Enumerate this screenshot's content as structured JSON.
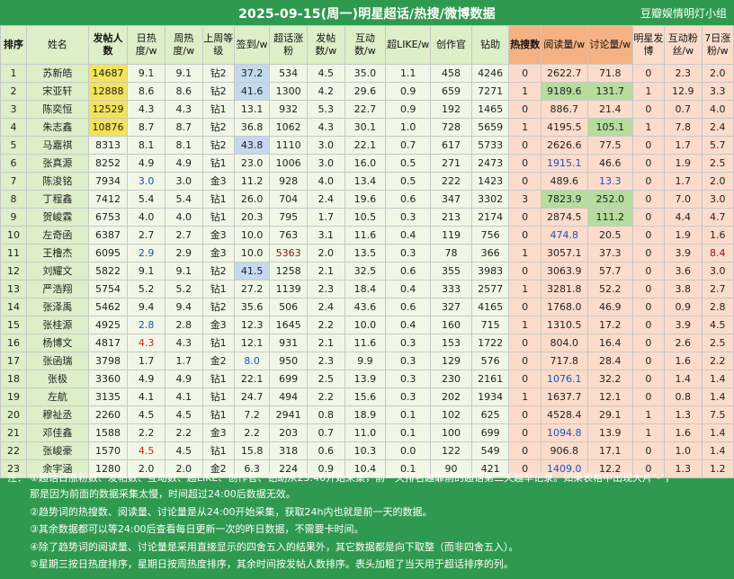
{
  "title": "2025-09-15(周一)明星超话/热搜/微博数据",
  "brand": "豆瓣娱情明灯小组",
  "headers": [
    "排序",
    "姓名",
    "发帖人数",
    "日热度/w",
    "周热度/w",
    "上周等级",
    "签到/w",
    "超话涨粉",
    "发帖数/w",
    "互动数/w",
    "超LIKE/w",
    "创作官",
    "钻助",
    "热搜数",
    "阅读量/w",
    "讨论量/w",
    "明星发博",
    "互动粉丝/w",
    "7日涨粉/w"
  ],
  "rows": [
    [
      "1",
      "苏新皓",
      "14687",
      "9.1",
      "9.1",
      "钻2",
      "37.2",
      "534",
      "4.5",
      "35.0",
      "1.1",
      "458",
      "4246",
      "0",
      "2622.7",
      "71.8",
      "0",
      "2.3",
      "2.0"
    ],
    [
      "2",
      "宋亚轩",
      "12888",
      "8.6",
      "8.6",
      "钻2",
      "41.6",
      "1300",
      "4.2",
      "29.6",
      "0.9",
      "659",
      "7271",
      "1",
      "9189.6",
      "131.7",
      "1",
      "12.9",
      "3.3"
    ],
    [
      "3",
      "陈奕恒",
      "12529",
      "4.3",
      "4.3",
      "钻1",
      "13.1",
      "932",
      "5.3",
      "22.7",
      "0.9",
      "192",
      "1465",
      "0",
      "886.7",
      "21.4",
      "0",
      "0.7",
      "4.0"
    ],
    [
      "4",
      "朱志鑫",
      "10876",
      "8.7",
      "8.7",
      "钻2",
      "36.8",
      "1062",
      "4.3",
      "30.1",
      "1.0",
      "728",
      "5659",
      "1",
      "4195.5",
      "105.1",
      "1",
      "7.8",
      "2.4"
    ],
    [
      "5",
      "马嘉祺",
      "8313",
      "8.1",
      "8.1",
      "钻2",
      "43.8",
      "1110",
      "3.0",
      "22.1",
      "0.7",
      "617",
      "5733",
      "0",
      "2626.6",
      "77.5",
      "0",
      "1.7",
      "5.7"
    ],
    [
      "6",
      "张真源",
      "8252",
      "4.9",
      "4.9",
      "钻1",
      "23.0",
      "1006",
      "3.0",
      "16.0",
      "0.5",
      "271",
      "2473",
      "0",
      "1915.1",
      "46.6",
      "0",
      "1.9",
      "2.5"
    ],
    [
      "7",
      "陈浚铭",
      "7934",
      "3.0",
      "3.0",
      "金3",
      "11.2",
      "928",
      "4.0",
      "13.4",
      "0.5",
      "222",
      "1423",
      "0",
      "489.6",
      "13.3",
      "0",
      "1.7",
      "2.0"
    ],
    [
      "8",
      "丁程鑫",
      "7412",
      "5.4",
      "5.4",
      "钻1",
      "26.0",
      "704",
      "2.4",
      "19.6",
      "0.6",
      "347",
      "3302",
      "3",
      "7823.9",
      "252.0",
      "0",
      "7.0",
      "3.0"
    ],
    [
      "9",
      "贺峻霖",
      "6753",
      "4.0",
      "4.0",
      "钻1",
      "20.3",
      "795",
      "1.7",
      "10.5",
      "0.3",
      "213",
      "2174",
      "0",
      "2874.5",
      "111.2",
      "0",
      "4.4",
      "4.7"
    ],
    [
      "10",
      "左奇函",
      "6387",
      "2.7",
      "2.7",
      "金3",
      "10.0",
      "763",
      "3.1",
      "11.6",
      "0.4",
      "119",
      "756",
      "0",
      "474.8",
      "20.5",
      "0",
      "1.9",
      "1.6"
    ],
    [
      "11",
      "王橹杰",
      "6095",
      "2.9",
      "2.9",
      "金3",
      "10.0",
      "5363",
      "2.0",
      "13.5",
      "0.3",
      "78",
      "366",
      "1",
      "3057.1",
      "37.3",
      "0",
      "3.9",
      "8.4"
    ],
    [
      "12",
      "刘耀文",
      "5822",
      "9.1",
      "9.1",
      "钻2",
      "41.5",
      "1258",
      "2.1",
      "32.5",
      "0.6",
      "355",
      "3983",
      "0",
      "3063.9",
      "57.7",
      "0",
      "3.6",
      "3.0"
    ],
    [
      "13",
      "严浩翔",
      "5754",
      "5.2",
      "5.2",
      "钻1",
      "27.2",
      "1139",
      "2.3",
      "18.4",
      "0.4",
      "333",
      "2577",
      "1",
      "3281.8",
      "52.2",
      "0",
      "3.8",
      "2.7"
    ],
    [
      "14",
      "张泽禹",
      "5462",
      "9.4",
      "9.4",
      "钻2",
      "35.6",
      "506",
      "2.4",
      "43.6",
      "0.6",
      "327",
      "4165",
      "0",
      "1768.0",
      "46.9",
      "0",
      "0.9",
      "2.8"
    ],
    [
      "15",
      "张桂源",
      "4925",
      "2.8",
      "2.8",
      "金3",
      "12.3",
      "1645",
      "2.2",
      "10.0",
      "0.4",
      "160",
      "715",
      "1",
      "1310.5",
      "17.2",
      "0",
      "3.9",
      "4.5"
    ],
    [
      "16",
      "杨博文",
      "4817",
      "4.3",
      "4.3",
      "钻1",
      "12.1",
      "931",
      "2.1",
      "11.6",
      "0.3",
      "153",
      "1722",
      "0",
      "804.0",
      "16.4",
      "0",
      "2.6",
      "2.5"
    ],
    [
      "17",
      "张函瑞",
      "3798",
      "1.7",
      "1.7",
      "金2",
      "8.0",
      "950",
      "2.3",
      "9.9",
      "0.3",
      "129",
      "576",
      "0",
      "717.8",
      "28.4",
      "0",
      "1.6",
      "2.2"
    ],
    [
      "18",
      "张极",
      "3360",
      "4.9",
      "4.9",
      "钻1",
      "22.1",
      "699",
      "2.5",
      "13.9",
      "0.3",
      "230",
      "2161",
      "0",
      "1076.1",
      "32.2",
      "0",
      "1.4",
      "1.4"
    ],
    [
      "19",
      "左航",
      "3135",
      "4.1",
      "4.1",
      "钻1",
      "24.7",
      "494",
      "2.2",
      "15.6",
      "0.3",
      "202",
      "1934",
      "1",
      "1637.7",
      "12.1",
      "0",
      "0.8",
      "1.4"
    ],
    [
      "20",
      "穆祉丞",
      "2260",
      "4.5",
      "4.5",
      "钻1",
      "7.2",
      "2941",
      "0.8",
      "18.9",
      "0.1",
      "102",
      "625",
      "0",
      "4528.4",
      "29.1",
      "1",
      "1.3",
      "7.5"
    ],
    [
      "21",
      "邓佳鑫",
      "1588",
      "2.2",
      "2.2",
      "金3",
      "2.2",
      "203",
      "0.7",
      "11.0",
      "0.1",
      "100",
      "699",
      "0",
      "1094.8",
      "13.9",
      "1",
      "1.6",
      "1.4"
    ],
    [
      "22",
      "张峻豪",
      "1570",
      "4.5",
      "4.5",
      "钻1",
      "15.8",
      "318",
      "0.6",
      "10.3",
      "0.0",
      "122",
      "549",
      "0",
      "906.8",
      "17.1",
      "0",
      "1.0",
      "1.4"
    ],
    [
      "23",
      "余宇涵",
      "1280",
      "2.0",
      "2.0",
      "金2",
      "6.3",
      "224",
      "0.9",
      "10.4",
      "0.1",
      "90",
      "421",
      "0",
      "1409.0",
      "12.2",
      "0",
      "1.3",
      "1.2"
    ]
  ],
  "notes_label": "注：",
  "notes": [
    "①超话日涨粉数、发帖数、互动数、超LIKE、创作官、钻助从23:40开始采集，前一天排名越靠前的超话第二天越早记录。如果表格中出现大片\"-\"，",
    "  那是因为前面的数据采集太慢，时间超过24:00后数据无效。",
    "②趋势词的热搜数、阅读量、讨论量是从24:00开始采集，获取24h内也就是前一天的数据。",
    "③其余数据都可以等24:00后查看每日更新一次的昨日数据，不需要卡时间。",
    "④除了趋势词的阅读量、讨论量是采用直接显示的四舍五入的结果外，其它数据都是向下取整（而非四舍五入）。",
    "⑤星期三按日热度排序，星期日按周热度排序，其余时间按发帖人数排序。表头加粗了当天用于超话排序的列。"
  ],
  "colors": {
    "header_green": "#2f9a4f",
    "col_green": "#dcefc8",
    "col_light": "#f0f7e6",
    "col_orange": "#fbdccb",
    "white": "#ffffff",
    "highlight_yellow": "#f3e35b",
    "highlight_blue": "#c5d9ee",
    "highlight_green": "#b6dc9e",
    "text_red": "#d22222",
    "text_blue": "#2050c0",
    "text_darkred": "#8a1010",
    "header_orange": "#f4b183"
  }
}
